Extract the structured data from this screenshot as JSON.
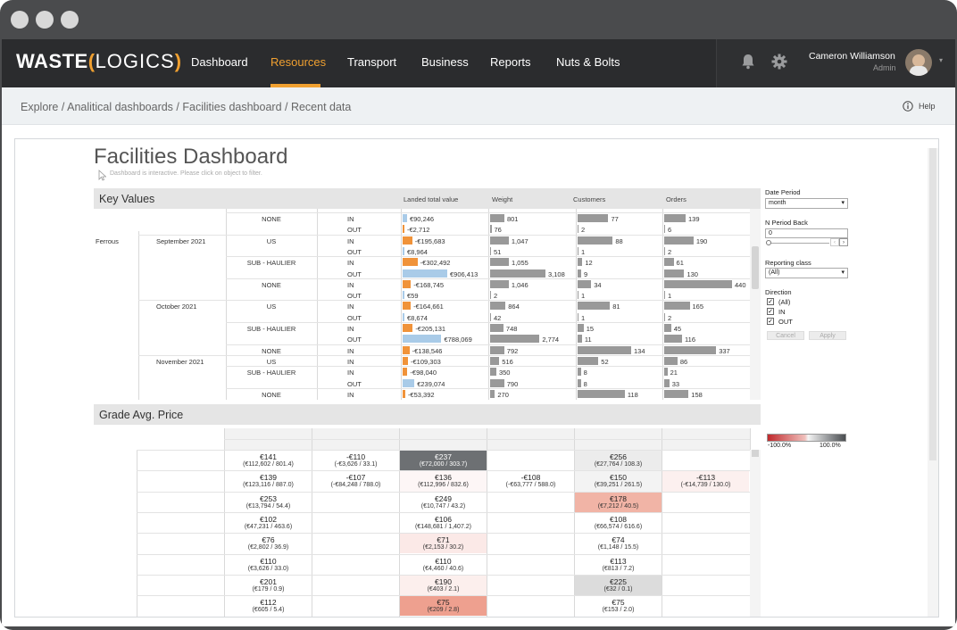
{
  "nav": {
    "logo_a": "WASTE",
    "logo_b": "LOGICS",
    "items": [
      "Dashboard",
      "Resources",
      "Transport",
      "Business",
      "Reports",
      "Nuts & Bolts"
    ],
    "user_name": "Cameron Williamson",
    "user_role": "Admin"
  },
  "breadcrumb": "Explore / Analitical dashboards / Facilities dashboard / Recent data",
  "help": "Help",
  "dashboard": {
    "title": "Facilities Dashboard",
    "hint": "Dashboard is interactive. Please click on object to filter."
  },
  "key_values": {
    "title": "Key Values",
    "columns": [
      "Landed total value",
      "Weight",
      "Customers",
      "Orders"
    ],
    "rows": [
      {
        "c1": "",
        "c2": "",
        "c3": "NONE",
        "dir": "IN",
        "val": "€90,246",
        "w": "801",
        "cust": "77",
        "ord": "139",
        "vn": 90246,
        "wn": 801,
        "cn": 77,
        "on": 139
      },
      {
        "c1": "",
        "c2": "",
        "c3": "",
        "dir": "OUT",
        "val": "-€2,712",
        "w": "76",
        "cust": "2",
        "ord": "6",
        "vn": -2712,
        "wn": 76,
        "cn": 2,
        "on": 6
      },
      {
        "c1": "Ferrous",
        "c2": "September 2021",
        "c3": "US",
        "dir": "IN",
        "val": "-€195,683",
        "w": "1,047",
        "cust": "88",
        "ord": "190",
        "vn": -195683,
        "wn": 1047,
        "cn": 88,
        "on": 190
      },
      {
        "c1": "",
        "c2": "",
        "c3": "",
        "dir": "OUT",
        "val": "€8,964",
        "w": "51",
        "cust": "1",
        "ord": "2",
        "vn": 8964,
        "wn": 51,
        "cn": 1,
        "on": 2
      },
      {
        "c1": "",
        "c2": "",
        "c3": "SUB - HAULIER",
        "dir": "IN",
        "val": "-€302,492",
        "w": "1,055",
        "cust": "12",
        "ord": "61",
        "vn": -302492,
        "wn": 1055,
        "cn": 12,
        "on": 61
      },
      {
        "c1": "",
        "c2": "",
        "c3": "",
        "dir": "OUT",
        "val": "€906,413",
        "w": "3,108",
        "cust": "9",
        "ord": "130",
        "vn": 906413,
        "wn": 3108,
        "cn": 9,
        "on": 130
      },
      {
        "c1": "",
        "c2": "",
        "c3": "NONE",
        "dir": "IN",
        "val": "-€168,745",
        "w": "1,046",
        "cust": "34",
        "ord": "440",
        "vn": -168745,
        "wn": 1046,
        "cn": 34,
        "on": 440
      },
      {
        "c1": "",
        "c2": "",
        "c3": "",
        "dir": "OUT",
        "val": "€59",
        "w": "2",
        "cust": "1",
        "ord": "1",
        "vn": 59,
        "wn": 2,
        "cn": 1,
        "on": 1
      },
      {
        "c1": "",
        "c2": "October 2021",
        "c3": "US",
        "dir": "IN",
        "val": "-€164,661",
        "w": "864",
        "cust": "81",
        "ord": "165",
        "vn": -164661,
        "wn": 864,
        "cn": 81,
        "on": 165
      },
      {
        "c1": "",
        "c2": "",
        "c3": "",
        "dir": "OUT",
        "val": "€8,674",
        "w": "42",
        "cust": "1",
        "ord": "2",
        "vn": 8674,
        "wn": 42,
        "cn": 1,
        "on": 2
      },
      {
        "c1": "",
        "c2": "",
        "c3": "SUB - HAULIER",
        "dir": "IN",
        "val": "-€205,131",
        "w": "748",
        "cust": "15",
        "ord": "45",
        "vn": -205131,
        "wn": 748,
        "cn": 15,
        "on": 45
      },
      {
        "c1": "",
        "c2": "",
        "c3": "",
        "dir": "OUT",
        "val": "€788,069",
        "w": "2,774",
        "cust": "11",
        "ord": "116",
        "vn": 788069,
        "wn": 2774,
        "cn": 11,
        "on": 116
      },
      {
        "c1": "",
        "c2": "",
        "c3": "NONE",
        "dir": "IN",
        "val": "-€138,546",
        "w": "792",
        "cust": "134",
        "ord": "337",
        "vn": -138546,
        "wn": 792,
        "cn": 134,
        "on": 337
      },
      {
        "c1": "",
        "c2": "November 2021",
        "c3": "US",
        "dir": "IN",
        "val": "-€109,303",
        "w": "516",
        "cust": "52",
        "ord": "86",
        "vn": -109303,
        "wn": 516,
        "cn": 52,
        "on": 86
      },
      {
        "c1": "",
        "c2": "",
        "c3": "SUB - HAULIER",
        "dir": "IN",
        "val": "-€98,040",
        "w": "350",
        "cust": "8",
        "ord": "21",
        "vn": -98040,
        "wn": 350,
        "cn": 8,
        "on": 21
      },
      {
        "c1": "",
        "c2": "",
        "c3": "",
        "dir": "OUT",
        "val": "€239,074",
        "w": "790",
        "cust": "8",
        "ord": "33",
        "vn": 239074,
        "wn": 790,
        "cn": 8,
        "on": 33
      },
      {
        "c1": "",
        "c2": "",
        "c3": "NONE",
        "dir": "IN",
        "val": "-€53,392",
        "w": "270",
        "cust": "118",
        "ord": "158",
        "vn": -53392,
        "wn": 270,
        "cn": 118,
        "on": 158
      }
    ]
  },
  "grade": {
    "title": "Grade Avg. Price",
    "months": [
      "September 2021",
      "October 2021",
      "November 2021"
    ],
    "subcols": [
      "IN",
      "OUT",
      "IN",
      "OUT",
      "IN",
      "OUT"
    ],
    "group": "Waste",
    "rows": [
      {
        "name": "C&D Mixed Construction & Demolition Waste",
        "cells": [
          {
            "v": "€141",
            "s": "(€112,602 / 801.4)"
          },
          {
            "v": "-€110",
            "s": "(-€3,626 / 33.1)"
          },
          {
            "v": "€237",
            "s": "(€72,000 / 303.7)",
            "bg": "#6d7073",
            "fg": "#fff"
          },
          null,
          {
            "v": "€256",
            "s": "(€27,764 / 108.3)",
            "bg": "#ececec"
          },
          null
        ]
      },
      {
        "name": "H&C Mixed Municipal Waste",
        "cells": [
          {
            "v": "€139",
            "s": "(€123,116 / 887.0)"
          },
          {
            "v": "-€107",
            "s": "(-€84,248 / 788.0)"
          },
          {
            "v": "€136",
            "s": "(€112,996 / 832.6)",
            "bg": "#fdf6f6"
          },
          {
            "v": "-€108",
            "s": "(-€63,777 / 588.0)"
          },
          {
            "v": "€150",
            "s": "(€39,251 / 261.5)",
            "bg": "#f3f3f3"
          },
          {
            "v": "-€113",
            "s": "(-€14,739 / 130.0)",
            "bg": "#fcf0ef"
          }
        ]
      },
      {
        "name": "H&C Bulky Waste",
        "cells": [
          {
            "v": "€253",
            "s": "(€13,794 / 54.4)"
          },
          null,
          {
            "v": "€249",
            "s": "(€10,747 / 43.2)"
          },
          null,
          {
            "v": "€178",
            "s": "(€7,212 / 40.5)",
            "bg": "#f1b4a6"
          },
          null
        ]
      },
      {
        "name": "MRF Mechanical treatment of wastes",
        "cells": [
          {
            "v": "€102",
            "s": "(€47,231 / 463.6)"
          },
          null,
          {
            "v": "€106",
            "s": "(€148,681 / 1,407.2)"
          },
          null,
          {
            "v": "€108",
            "s": "(€66,574 / 616.6)"
          },
          null
        ]
      },
      {
        "name": "H&C Wood",
        "cells": [
          {
            "v": "€76",
            "s": "(€2,802 / 36.9)"
          },
          null,
          {
            "v": "€71",
            "s": "(€2,153 / 30.2)",
            "bg": "#fbe9e7"
          },
          null,
          {
            "v": "€74",
            "s": "(€1,148 / 15.5)"
          },
          null
        ]
      },
      {
        "name": "C&D Wood",
        "cells": [
          {
            "v": "€110",
            "s": "(€3,626 / 33.0)"
          },
          null,
          {
            "v": "€110",
            "s": "(€4,460 / 40.6)"
          },
          null,
          {
            "v": "€113",
            "s": "(€813 / 7.2)"
          },
          null
        ]
      },
      {
        "name": "Paper & Cardboard Packaging",
        "cells": [
          {
            "v": "€201",
            "s": "(€179 / 0.9)"
          },
          null,
          {
            "v": "€190",
            "s": "(€403 / 2.1)",
            "bg": "#fcefed"
          },
          null,
          {
            "v": "€225",
            "s": "(€32 / 0.1)",
            "bg": "#dcdcdc"
          },
          null
        ]
      },
      {
        "name": "H&C Street Cleaning Residues",
        "cells": [
          {
            "v": "€112",
            "s": "(€605 / 5.4)"
          },
          null,
          {
            "v": "€75",
            "s": "(€209 / 2.8)",
            "bg": "#eea08f"
          },
          null,
          {
            "v": "€75",
            "s": "(€153 / 2.0)"
          },
          null
        ]
      }
    ]
  },
  "filters": {
    "date_period_label": "Date Period",
    "date_period_value": "month",
    "n_back_label": "N Period Back",
    "n_back_value": "0",
    "reporting_label": "Reporting class",
    "reporting_value": "(All)",
    "direction_label": "Direction",
    "options": [
      "(All)",
      "IN",
      "OUT"
    ],
    "cancel": "Cancel",
    "apply": "Apply",
    "legend_min": "-100.0%",
    "legend_max": "100.0%"
  }
}
